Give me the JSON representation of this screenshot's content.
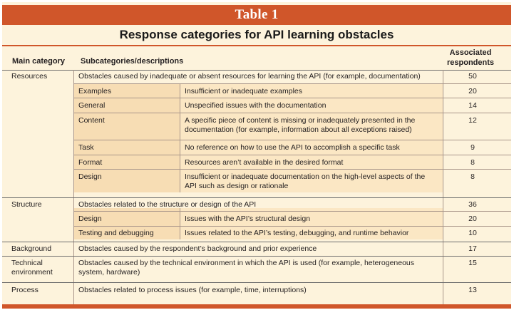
{
  "table": {
    "label": "Table 1",
    "title": "Response categories for API learning obstacles",
    "headers": {
      "main": "Main category",
      "sub": "Subcategories/descriptions",
      "assoc_line1": "Associated",
      "assoc_line2": "respondents"
    },
    "rows": [
      {
        "main": "Resources",
        "sub": "Obstacles caused by inadequate or absent resources for learning the API (for example, documentation)",
        "desc": "",
        "count": "50"
      },
      {
        "main": "",
        "sub": "Examples",
        "desc": "Insufficient or inadequate examples",
        "count": "20"
      },
      {
        "main": "",
        "sub": "General",
        "desc": "Unspecified issues with the documentation",
        "count": "14"
      },
      {
        "main": "",
        "sub": "Content",
        "desc": "A specific piece of content is missing or inadequately presented in the documentation (for example, information about all exceptions raised)",
        "count": "12"
      },
      {
        "main": "",
        "sub": "Task",
        "desc": "No reference on how to use the API to accomplish a specific task",
        "count": "9"
      },
      {
        "main": "",
        "sub": "Format",
        "desc": "Resources aren’t available in the desired format",
        "count": "8"
      },
      {
        "main": "",
        "sub": "Design",
        "desc": "Insufficient or inadequate documentation on the high-level aspects of the API such as design or rationale",
        "count": "8"
      },
      {
        "main": "Structure",
        "sub": "Obstacles related to the structure or design of the API",
        "desc": "",
        "count": "36"
      },
      {
        "main": "",
        "sub": "Design",
        "desc": "Issues with the API’s structural design",
        "count": "20"
      },
      {
        "main": "",
        "sub": "Testing and debugging",
        "desc": "Issues related to the API’s testing, debugging, and runtime behavior",
        "count": "10"
      },
      {
        "main": "Background",
        "sub": "Obstacles caused by the respondent’s background and prior experience",
        "desc": "",
        "count": "17"
      },
      {
        "main": "Technical environment",
        "sub": "Obstacles caused by the technical environment in which the API is used (for example, heterogeneous system, hardware)",
        "desc": "",
        "count": "15"
      },
      {
        "main": "Process",
        "sub": "Obstacles related to process issues (for example, time, interruptions)",
        "desc": "",
        "count": "13"
      }
    ]
  },
  "colors": {
    "accent": "#d0562a",
    "background": "#fdf3dc",
    "band": "#f7ddb4"
  }
}
